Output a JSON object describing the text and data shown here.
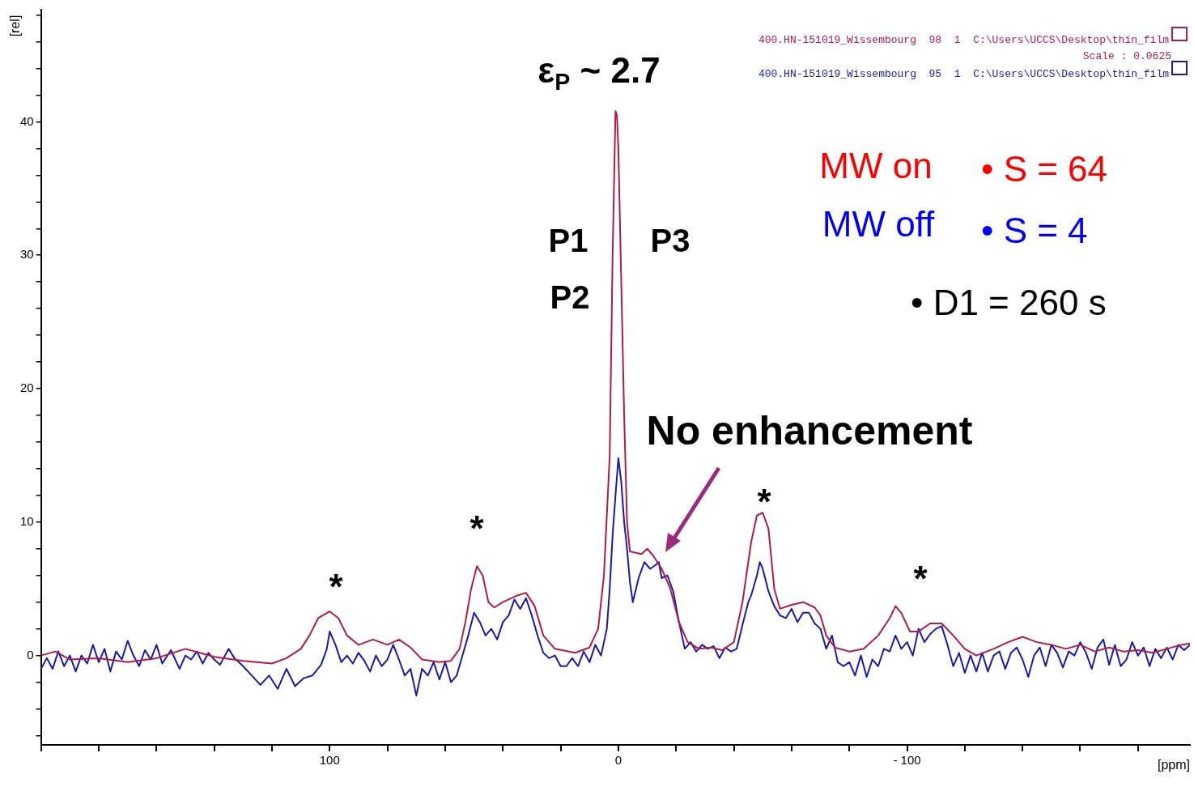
{
  "chart_data": {
    "type": "line",
    "xlabel": "[ppm]",
    "ylabel": "[rel]",
    "xlim": [
      200,
      -198
    ],
    "ylim": [
      -6.7,
      48.4
    ],
    "xticks": [
      {
        "value": 200,
        "label": null
      },
      {
        "value": 180,
        "label": null
      },
      {
        "value": 160,
        "label": null
      },
      {
        "value": 140,
        "label": null
      },
      {
        "value": 120,
        "label": null
      },
      100,
      {
        "value": 80,
        "label": null
      },
      {
        "value": 60,
        "label": null
      },
      {
        "value": 40,
        "label": null
      },
      {
        "value": 20,
        "label": null
      },
      0,
      {
        "value": -20,
        "label": null
      },
      {
        "value": -40,
        "label": null
      },
      {
        "value": -60,
        "label": null
      },
      {
        "value": -80,
        "label": null
      },
      {
        "value": -100,
        "label": "- 100"
      },
      {
        "value": -120,
        "label": null
      },
      {
        "value": -140,
        "label": null
      },
      {
        "value": -160,
        "label": null
      },
      {
        "value": -180,
        "label": null
      }
    ],
    "yticks": [
      {
        "value": -6,
        "label": null
      },
      {
        "value": -4,
        "label": null
      },
      {
        "value": -2,
        "label": null
      },
      0,
      {
        "value": 2,
        "label": null
      },
      {
        "value": 4,
        "label": null
      },
      {
        "value": 6,
        "label": null
      },
      {
        "value": 8,
        "label": null
      },
      10,
      {
        "value": 12,
        "label": null
      },
      {
        "value": 14,
        "label": null
      },
      {
        "value": 16,
        "label": null
      },
      {
        "value": 18,
        "label": null
      },
      20,
      {
        "value": 22,
        "label": null
      },
      {
        "value": 24,
        "label": null
      },
      {
        "value": 26,
        "label": null
      },
      {
        "value": 28,
        "label": null
      },
      30,
      {
        "value": 32,
        "label": null
      },
      {
        "value": 34,
        "label": null
      },
      {
        "value": 36,
        "label": null
      },
      {
        "value": 38,
        "label": null
      },
      40,
      {
        "value": 42,
        "label": null
      },
      {
        "value": 44,
        "label": null
      },
      {
        "value": 46,
        "label": null
      },
      {
        "value": 48,
        "label": null
      }
    ],
    "grid": false,
    "marker": "none",
    "line_style": "solid",
    "legend": "top right",
    "series": [
      {
        "name": "400.HN-151019_Wissembourg  98  1  C:\\Users\\UCCS\\Desktop\\thin_film",
        "color": "#b01c48",
        "x": [
          200,
          195,
          190,
          180,
          170,
          160,
          150,
          145,
          140,
          130,
          120,
          115,
          110,
          107,
          104,
          100,
          97,
          94,
          90,
          85,
          80,
          76,
          72,
          68,
          62,
          58,
          55,
          53,
          51,
          49,
          47,
          45,
          43,
          40,
          35,
          32,
          29,
          26,
          22,
          15,
          10,
          7,
          5,
          3,
          2,
          1,
          0.5,
          0,
          -1,
          -2,
          -3,
          -4,
          -6,
          -8,
          -10,
          -12,
          -15,
          -18,
          -21,
          -24,
          -28,
          -32,
          -36,
          -40,
          -43,
          -46,
          -48,
          -50,
          -52,
          -54,
          -56,
          -60,
          -64,
          -68,
          -70,
          -72,
          -75,
          -80,
          -85,
          -90,
          -94,
          -96,
          -98,
          -101,
          -104,
          -108,
          -112,
          -116,
          -120,
          -124,
          -130,
          -135,
          -140,
          -145,
          -150,
          -155,
          -160,
          -165,
          -170,
          -175,
          -180,
          -185,
          -190,
          -195,
          -198
        ],
        "values": [
          0,
          0.3,
          -0.3,
          -0.2,
          -0.5,
          -0.2,
          0.5,
          0.2,
          -0.1,
          -0.4,
          -0.6,
          -0.2,
          0.5,
          1.5,
          2.8,
          3.3,
          2.8,
          1.5,
          0.8,
          1.2,
          0.8,
          1.2,
          0.6,
          -0.3,
          -0.5,
          -0.4,
          0.5,
          2.5,
          5,
          6.7,
          6,
          4,
          3.6,
          4,
          4.5,
          4.7,
          3.7,
          1.5,
          0.5,
          0.2,
          0.6,
          2,
          6,
          15,
          30,
          40.8,
          40.5,
          38,
          28,
          18,
          10,
          7.8,
          7.7,
          7.6,
          8,
          7.5,
          6.5,
          5,
          2.5,
          1,
          0.5,
          0.6,
          0.4,
          1,
          4,
          8.5,
          10.5,
          10.7,
          9.5,
          5,
          3.5,
          3.8,
          4,
          3.6,
          3,
          1.5,
          0.6,
          0.3,
          0.5,
          1.5,
          2.8,
          3.7,
          3.2,
          1.8,
          1.8,
          2.4,
          2.4,
          1.5,
          0.5,
          0,
          0.5,
          1,
          1.4,
          1,
          0.8,
          0.5,
          0.8,
          0.3,
          0.6,
          0.3,
          0.4,
          0.2,
          0.5,
          0.8,
          0.9
        ]
      },
      {
        "name": "400.HN-151019_Wissembourg  95  1  C:\\Users\\UCCS\\Desktop\\thin_film",
        "color": "#1a1aa6",
        "x": [
          200,
          198,
          196,
          194,
          192,
          190,
          188,
          186,
          184,
          182,
          180,
          178,
          176,
          174,
          172,
          170,
          168,
          166,
          164,
          162,
          160,
          158,
          155,
          152,
          150,
          148,
          146,
          144,
          142,
          140,
          138,
          135,
          133,
          130,
          127,
          124,
          121,
          118,
          115,
          112,
          109,
          106,
          103,
          101,
          100,
          98,
          96,
          94,
          92,
          90,
          88,
          86,
          84,
          82,
          80,
          78,
          76,
          74,
          72,
          70,
          68,
          66,
          64,
          62,
          60,
          58,
          56,
          54,
          52,
          50,
          48,
          46,
          44,
          42,
          40,
          38,
          36,
          34,
          32,
          30,
          28,
          26,
          24,
          22,
          20,
          18,
          16,
          14,
          12,
          10,
          8,
          6,
          4,
          3,
          2,
          1,
          0,
          -1,
          -2,
          -3,
          -4,
          -5,
          -7,
          -9,
          -11,
          -13,
          -14,
          -15,
          -17,
          -19,
          -21,
          -23,
          -25,
          -27,
          -29,
          -31,
          -33,
          -35,
          -37,
          -39,
          -41,
          -43,
          -45,
          -46,
          -48,
          -49,
          -50,
          -52,
          -54,
          -56,
          -58,
          -60,
          -62,
          -64,
          -66,
          -68,
          -70,
          -72,
          -74,
          -76,
          -78,
          -80,
          -82,
          -84,
          -86,
          -88,
          -90,
          -92,
          -94,
          -96,
          -98,
          -100,
          -102,
          -104,
          -106,
          -108,
          -110,
          -112,
          -114,
          -116,
          -118,
          -120,
          -122,
          -124,
          -126,
          -128,
          -130,
          -132,
          -134,
          -136,
          -138,
          -140,
          -142,
          -144,
          -146,
          -148,
          -150,
          -152,
          -154,
          -156,
          -158,
          -160,
          -162,
          -164,
          -166,
          -168,
          -170,
          -172,
          -174,
          -176,
          -178,
          -180,
          -182,
          -184,
          -186,
          -188,
          -190,
          -192,
          -194,
          -196,
          -198
        ],
        "values": [
          -1,
          -0.2,
          -1,
          0.3,
          -0.8,
          0,
          -1.2,
          0,
          -0.6,
          0.8,
          -0.5,
          0.5,
          -1.2,
          0.3,
          -0.3,
          1.1,
          0,
          -0.8,
          0.4,
          -0.3,
          0.8,
          -0.6,
          0.4,
          -1,
          0,
          -0.3,
          0.3,
          -0.6,
          0.2,
          -0.3,
          -0.7,
          0.5,
          -0.2,
          -0.8,
          -1.5,
          -2.2,
          -1.5,
          -2.5,
          -1,
          -2.3,
          -1.7,
          -1.5,
          -0.7,
          0.5,
          1.8,
          0.8,
          -0.5,
          0,
          -0.6,
          0.2,
          -0.4,
          -1.2,
          0,
          -0.8,
          -0.3,
          0.8,
          -0.3,
          -1.5,
          -1,
          -3,
          -1,
          -1.5,
          -0.5,
          -1.8,
          -0.5,
          -2,
          -1.5,
          0,
          1.5,
          3.2,
          2.5,
          1.5,
          2,
          1.2,
          2.5,
          3,
          4.2,
          3.5,
          4.3,
          3,
          1.5,
          0.2,
          -0.2,
          0,
          -0.8,
          -0.8,
          -0.2,
          -0.8,
          0.3,
          -0.5,
          0.8,
          0,
          2,
          5,
          9,
          12,
          14.8,
          13,
          10,
          8,
          5.5,
          4,
          5.8,
          7,
          6.5,
          6.8,
          7,
          5.8,
          6,
          4.8,
          2.5,
          0.5,
          1,
          0.3,
          0.8,
          0.5,
          0.7,
          -0.2,
          0.6,
          0.3,
          0.5,
          2.3,
          4,
          4.5,
          6,
          7,
          6.5,
          4.8,
          3.7,
          3,
          2.8,
          3.5,
          2.5,
          3.2,
          3.2,
          2.4,
          2,
          0.5,
          1.5,
          -0.5,
          -0.8,
          -0.5,
          -1.5,
          0,
          -1.6,
          -0.3,
          -0.8,
          0.5,
          0.3,
          1.5,
          0.5,
          1,
          0,
          2,
          1,
          1.6,
          2,
          2.2,
          0.8,
          -0.8,
          0.2,
          -1.3,
          0,
          -1.2,
          0.2,
          -1.2,
          0,
          0.3,
          -1,
          0.2,
          0.6,
          -0.3,
          -1.6,
          0,
          0.6,
          -0.8,
          0.8,
          0.2,
          -0.9,
          0.3,
          0,
          1,
          0.2,
          -1,
          0.6,
          1.2,
          -0.7,
          0.8,
          -0.8,
          -0.3,
          1,
          0,
          0.6,
          -0.8,
          0.5,
          -0.2,
          0.6,
          -0.3,
          0.8,
          0.4,
          0.8
        ]
      }
    ],
    "annotations": [
      "ε$_{P}$ ~ 2.7",
      "P1",
      "P2",
      "P3",
      "No enhancement",
      "*",
      "*",
      "*",
      "*",
      "Scale : 0.0625",
      "MW on",
      "• S = 64",
      "MW off",
      "• S = 4",
      "• D1 = 260 s"
    ]
  }
}
